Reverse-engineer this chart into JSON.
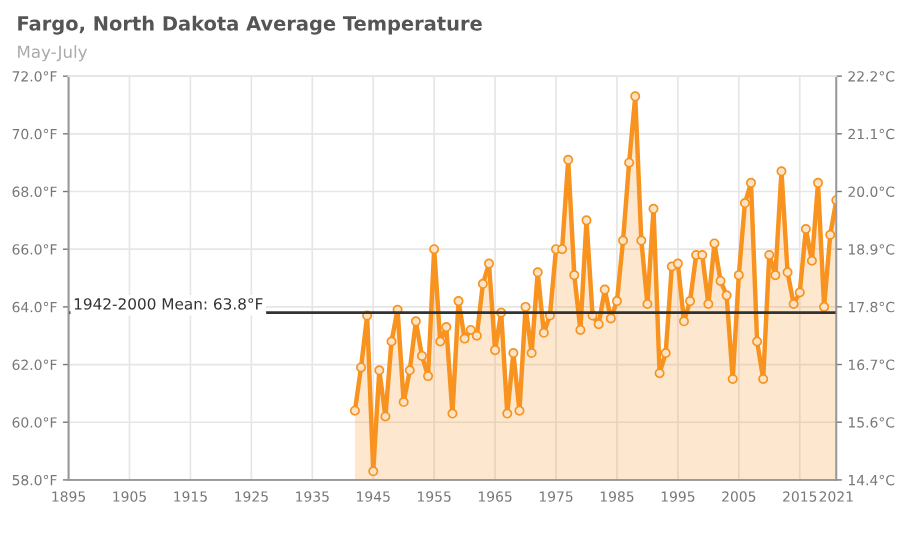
{
  "chart_data": {
    "type": "area",
    "title": "Fargo, North Dakota Average Temperature",
    "subtitle": "May-July",
    "x": [
      1942,
      1943,
      1944,
      1945,
      1946,
      1947,
      1948,
      1949,
      1950,
      1951,
      1952,
      1953,
      1954,
      1955,
      1956,
      1957,
      1958,
      1959,
      1960,
      1961,
      1962,
      1963,
      1964,
      1965,
      1966,
      1967,
      1968,
      1969,
      1970,
      1971,
      1972,
      1973,
      1974,
      1975,
      1976,
      1977,
      1978,
      1979,
      1980,
      1981,
      1982,
      1983,
      1984,
      1985,
      1986,
      1987,
      1988,
      1989,
      1990,
      1991,
      1992,
      1993,
      1994,
      1995,
      1996,
      1997,
      1998,
      1999,
      2000,
      2001,
      2002,
      2003,
      2004,
      2005,
      2006,
      2007,
      2008,
      2009,
      2010,
      2011,
      2012,
      2013,
      2014,
      2015,
      2016,
      2017,
      2018,
      2019,
      2020,
      2021
    ],
    "series": [
      {
        "color": "#f7931e",
        "values": [
          60.4,
          61.9,
          63.7,
          58.3,
          61.8,
          60.2,
          62.8,
          63.9,
          60.7,
          61.8,
          63.5,
          62.3,
          61.6,
          66.0,
          62.8,
          63.3,
          60.3,
          64.2,
          62.9,
          63.2,
          63.0,
          64.8,
          65.5,
          62.5,
          63.8,
          60.3,
          62.4,
          60.4,
          64.0,
          62.4,
          65.2,
          63.1,
          63.7,
          66.0,
          66.0,
          69.1,
          65.1,
          63.2,
          67.0,
          63.7,
          63.4,
          64.6,
          63.6,
          64.2,
          66.3,
          69.0,
          71.3,
          66.3,
          64.1,
          67.4,
          61.7,
          62.4,
          65.4,
          65.5,
          63.5,
          64.2,
          65.8,
          65.8,
          64.1,
          66.2,
          64.9,
          64.4,
          61.5,
          65.1,
          67.6,
          68.3,
          62.8,
          61.5,
          65.8,
          65.1,
          68.7,
          65.2,
          64.1,
          64.5,
          66.7,
          65.6,
          68.3,
          64.0,
          66.5,
          67.7
        ]
      }
    ],
    "xlim": [
      1895,
      2021
    ],
    "xticks": [
      1895,
      1905,
      1915,
      1925,
      1935,
      1945,
      1955,
      1965,
      1975,
      1985,
      1995,
      2005,
      2015,
      2021
    ],
    "ylim": [
      58,
      72
    ],
    "yticks": [
      {
        "value": 58,
        "label": "58.0°F"
      },
      {
        "value": 60,
        "label": "60.0°F"
      },
      {
        "value": 62,
        "label": "62.0°F"
      },
      {
        "value": 64,
        "label": "64.0°F"
      },
      {
        "value": 66,
        "label": "66.0°F"
      },
      {
        "value": 68,
        "label": "68.0°F"
      },
      {
        "value": 70,
        "label": "70.0°F"
      },
      {
        "value": 72,
        "label": "72.0°F"
      }
    ],
    "y2lim": [
      14.444,
      22.222
    ],
    "y2ticks": [
      {
        "value": 14.444,
        "label": "14.4°C"
      },
      {
        "value": 15.556,
        "label": "15.6°C"
      },
      {
        "value": 16.667,
        "label": "16.7°C"
      },
      {
        "value": 17.778,
        "label": "17.8°C"
      },
      {
        "value": 18.889,
        "label": "18.9°C"
      },
      {
        "value": 20.0,
        "label": "20.0°C"
      },
      {
        "value": 21.111,
        "label": "21.1°C"
      },
      {
        "value": 22.222,
        "label": "22.2°C"
      }
    ],
    "ref_lines": [
      {
        "axis": "y",
        "value": 63.8,
        "label": "1942-2000 Mean: 63.8°F",
        "color": "#333333"
      }
    ],
    "grid": true,
    "marker": "circle",
    "line_style": "solid"
  }
}
